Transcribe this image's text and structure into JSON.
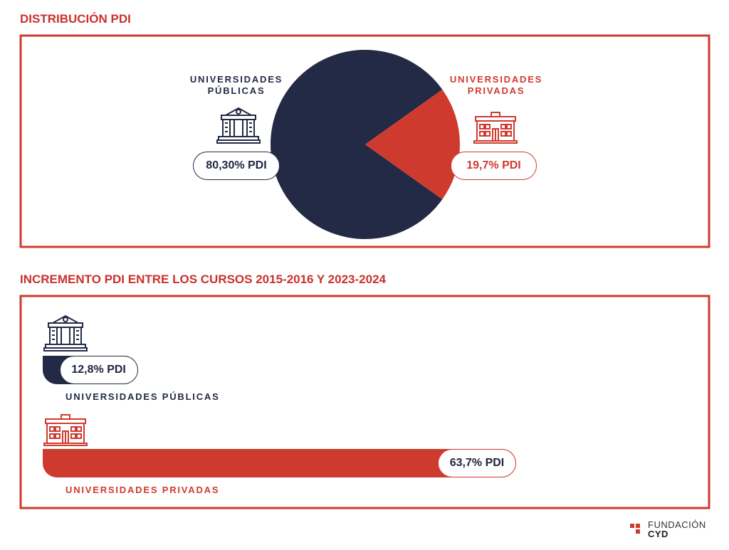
{
  "chart_data": [
    {
      "type": "pie",
      "title": "DISTRIBUCIÓN PDI",
      "categories": [
        "UNIVERSIDADES PÚBLICAS",
        "UNIVERSIDADES PRIVADAS"
      ],
      "values": [
        80.3,
        19.7
      ],
      "value_labels": [
        "80,30% PDI",
        "19,7% PDI"
      ],
      "colors": [
        "#232a45",
        "#cf3a2f"
      ]
    },
    {
      "type": "bar",
      "orientation": "horizontal",
      "title": "INCREMENTO PDI ENTRE LOS CURSOS 2015-2016 Y 2023-2024",
      "categories": [
        "UNIVERSIDADES PÚBLICAS",
        "UNIVERSIDADES PRIVADAS"
      ],
      "values": [
        12.8,
        63.7
      ],
      "value_labels": [
        "12,8% PDI",
        "63,7% PDI"
      ],
      "colors": [
        "#232a45",
        "#cf3a2f"
      ]
    }
  ],
  "footer": {
    "logo_name": "FUNDACIÓN",
    "logo_brand": "CYD"
  }
}
